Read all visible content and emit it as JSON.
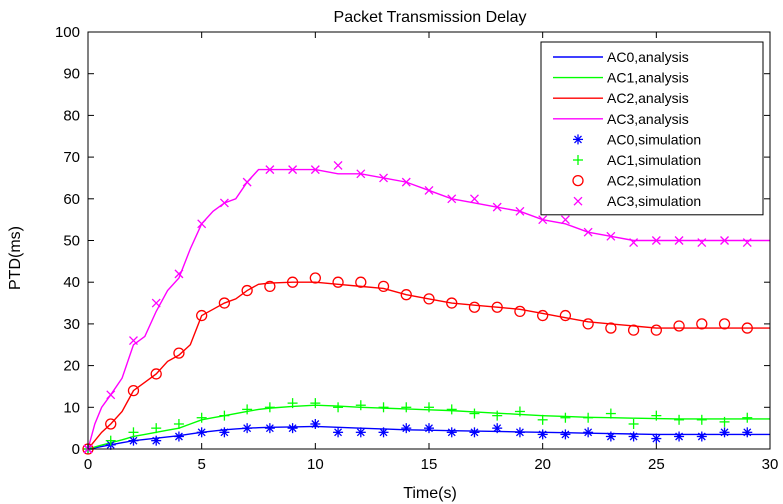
{
  "chart_data": {
    "type": "line",
    "title": "Packet Transmission Delay",
    "xlabel": "Time(s)",
    "ylabel": "PTD(ms)",
    "xlim": [
      0,
      30
    ],
    "ylim": [
      0,
      100
    ],
    "xticks": [
      0,
      5,
      10,
      15,
      20,
      25,
      30
    ],
    "xtick_labels": [
      "0",
      "5",
      "10",
      "15",
      "20",
      "25",
      "30"
    ],
    "yticks": [
      0,
      10,
      20,
      30,
      40,
      50,
      60,
      70,
      80,
      90,
      100
    ],
    "ytick_labels": [
      "0",
      "10",
      "20",
      "30",
      "40",
      "50",
      "60",
      "70",
      "80",
      "90",
      "100"
    ],
    "grid": false,
    "legend_position": "top-right",
    "series": [
      {
        "name": "AC0,analysis",
        "kind": "line",
        "color": "#0000ff",
        "x": [
          0,
          0.5,
          1,
          1.5,
          2,
          2.5,
          3,
          3.5,
          4,
          4.5,
          5,
          5.5,
          6,
          6.5,
          7,
          7.5,
          8,
          9,
          10,
          11,
          12,
          13,
          14,
          15,
          16,
          17,
          18,
          19,
          20,
          21,
          22,
          23,
          24,
          25,
          26,
          27,
          28,
          29,
          30
        ],
        "y": [
          0,
          0.5,
          1,
          1.5,
          2,
          2.3,
          2.6,
          2.9,
          3.2,
          3.6,
          4,
          4.3,
          4.6,
          4.8,
          5,
          5.1,
          5.2,
          5.3,
          5.4,
          5.2,
          5.0,
          4.8,
          4.6,
          4.5,
          4.4,
          4.3,
          4.2,
          4.1,
          4.0,
          3.9,
          3.8,
          3.7,
          3.6,
          3.5,
          3.5,
          3.5,
          3.5,
          3.5,
          3.5
        ]
      },
      {
        "name": "AC1,analysis",
        "kind": "line",
        "color": "#00ff00",
        "x": [
          0,
          0.5,
          1,
          1.5,
          2,
          2.5,
          3,
          3.5,
          4,
          4.5,
          5,
          5.5,
          6,
          6.5,
          7,
          7.5,
          8,
          9,
          10,
          11,
          12,
          13,
          14,
          15,
          16,
          17,
          18,
          19,
          20,
          21,
          22,
          23,
          24,
          25,
          26,
          27,
          28,
          29,
          30
        ],
        "y": [
          0,
          0.8,
          1.5,
          2.2,
          3,
          3.5,
          4,
          4.5,
          5,
          6,
          7,
          7.5,
          8,
          8.5,
          9,
          9.5,
          9.8,
          10.2,
          10.5,
          10.3,
          10,
          9.8,
          9.6,
          9.4,
          9.2,
          8.9,
          8.6,
          8.3,
          8,
          7.8,
          7.6,
          7.5,
          7.4,
          7.3,
          7.2,
          7.2,
          7.2,
          7.2,
          7.2
        ]
      },
      {
        "name": "AC2,analysis",
        "kind": "line",
        "color": "#ff0000",
        "x": [
          0,
          0.3,
          0.6,
          1,
          1.5,
          2,
          2.5,
          3,
          3.5,
          4,
          4.5,
          5,
          5.5,
          6,
          6.5,
          7,
          7.5,
          8,
          9,
          10,
          11,
          12,
          13,
          14,
          15,
          16,
          17,
          18,
          19,
          20,
          21,
          22,
          23,
          24,
          25,
          26,
          27,
          28,
          29,
          30
        ],
        "y": [
          0,
          2,
          4,
          6,
          9,
          14,
          16,
          18,
          21,
          22.5,
          25,
          32,
          33.5,
          35,
          36,
          38,
          39.5,
          39.8,
          40,
          40,
          39.5,
          39,
          38.5,
          37,
          36,
          35,
          34.5,
          34,
          33.5,
          32.5,
          31.5,
          30.5,
          30,
          29.5,
          29,
          29,
          29,
          29,
          29,
          29
        ]
      },
      {
        "name": "AC3,analysis",
        "kind": "line",
        "color": "#ff00ff",
        "x": [
          0,
          0.3,
          0.6,
          1,
          1.5,
          2,
          2.5,
          3,
          3.5,
          4,
          4.5,
          5,
          5.5,
          6,
          6.5,
          7,
          7.5,
          8,
          9,
          10,
          11,
          12,
          13,
          14,
          15,
          16,
          17,
          18,
          19,
          20,
          21,
          22,
          23,
          24,
          25,
          26,
          27,
          28,
          29,
          30
        ],
        "y": [
          0,
          6,
          10,
          13,
          17,
          25,
          27,
          33,
          38,
          41,
          48,
          54,
          57,
          59,
          60,
          64,
          67,
          67,
          67,
          67,
          66,
          66,
          65,
          64,
          62,
          60,
          59,
          58,
          57,
          55,
          54,
          52,
          51,
          50,
          50,
          50,
          50,
          50,
          50,
          50
        ]
      },
      {
        "name": "AC0,simulation",
        "kind": "marker",
        "marker": "asterisk",
        "color": "#0000ff",
        "x": [
          0,
          1,
          2,
          3,
          4,
          5,
          6,
          7,
          8,
          9,
          10,
          11,
          12,
          13,
          14,
          15,
          16,
          17,
          18,
          19,
          20,
          21,
          22,
          23,
          24,
          25,
          26,
          27,
          28,
          29
        ],
        "y": [
          0,
          1,
          2,
          2,
          3,
          4,
          4,
          5,
          5,
          5,
          6,
          4,
          4,
          4,
          5,
          5,
          4,
          4,
          5,
          4,
          3.5,
          3.5,
          4,
          3,
          3,
          2.5,
          3,
          3,
          4,
          4
        ]
      },
      {
        "name": "AC1,simulation",
        "kind": "marker",
        "marker": "plus",
        "color": "#00ff00",
        "x": [
          0,
          1,
          2,
          3,
          4,
          5,
          6,
          7,
          8,
          9,
          10,
          11,
          12,
          13,
          14,
          15,
          16,
          17,
          18,
          19,
          20,
          21,
          22,
          23,
          24,
          25,
          26,
          27,
          28,
          29
        ],
        "y": [
          0,
          2,
          4,
          5,
          6,
          7.5,
          8,
          9.5,
          10,
          11,
          11,
          10,
          10.5,
          10,
          10,
          10,
          9.5,
          8.5,
          8,
          9,
          7,
          7.5,
          7.5,
          8.5,
          6,
          8,
          7,
          7,
          6.5,
          7.5
        ]
      },
      {
        "name": "AC2,simulation",
        "kind": "marker",
        "marker": "circle",
        "color": "#ff0000",
        "x": [
          0,
          1,
          2,
          3,
          4,
          5,
          6,
          7,
          8,
          9,
          10,
          11,
          12,
          13,
          14,
          15,
          16,
          17,
          18,
          19,
          20,
          21,
          22,
          23,
          24,
          25,
          26,
          27,
          28,
          29
        ],
        "y": [
          0,
          6,
          14,
          18,
          23,
          32,
          35,
          38,
          39,
          40,
          41,
          40,
          40,
          39,
          37,
          36,
          35,
          34,
          34,
          33,
          32,
          32,
          30,
          29,
          28.5,
          28.5,
          29.5,
          30,
          30,
          29
        ]
      },
      {
        "name": "AC3,simulation",
        "kind": "marker",
        "marker": "x",
        "color": "#ff00ff",
        "x": [
          0,
          1,
          2,
          3,
          4,
          5,
          6,
          7,
          8,
          9,
          10,
          11,
          12,
          13,
          14,
          15,
          16,
          17,
          18,
          19,
          20,
          21,
          22,
          23,
          24,
          25,
          26,
          27,
          28,
          29
        ],
        "y": [
          0,
          13,
          26,
          35,
          42,
          54,
          59,
          64,
          67,
          67,
          67,
          68,
          66,
          65,
          64,
          62,
          60,
          60,
          58,
          57,
          55,
          55,
          52,
          51,
          49.5,
          50,
          50,
          49.5,
          50,
          49.5
        ]
      }
    ]
  }
}
